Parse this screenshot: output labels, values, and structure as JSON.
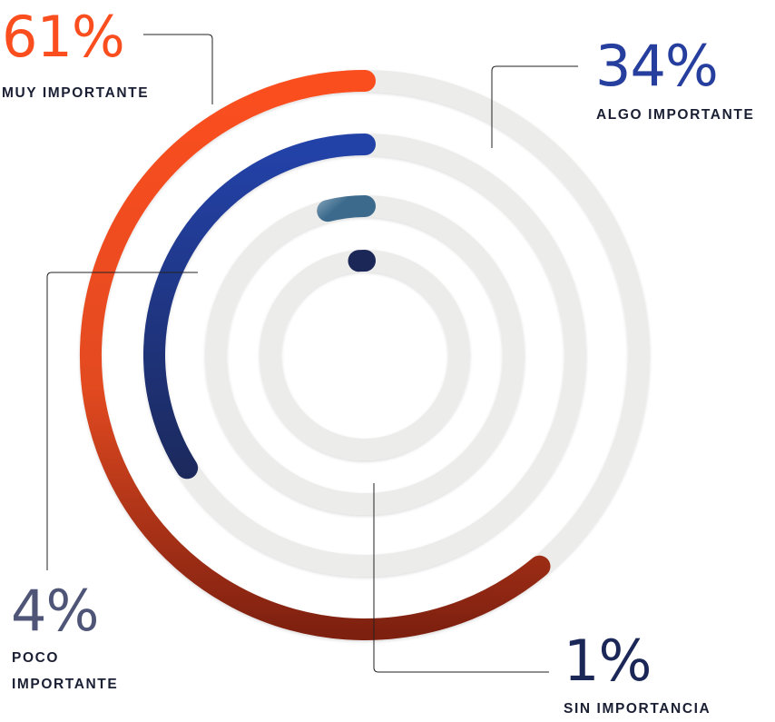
{
  "chart_data": {
    "type": "radial-bar",
    "max": 100,
    "series": [
      {
        "value": 61,
        "value_label": "61%",
        "name": "MUY IMPORTANTE",
        "color": "#fb4e1f",
        "color_end": "#7e2010"
      },
      {
        "value": 34,
        "value_label": "34%",
        "name": "ALGO IMPORTANTE",
        "color": "#2342a8",
        "color_end": "#1b2756"
      },
      {
        "value": 4,
        "value_label": "4%",
        "name": "POCO IMPORTANTE",
        "color": "#9fb4c5",
        "color_end": "#3b6a8c"
      },
      {
        "value": 1,
        "value_label": "1%",
        "name": "SIN IMPORTANCIA",
        "color": "#1b2756",
        "color_end": "#1b2756"
      }
    ],
    "track_color": "#ececea",
    "label_colors": [
      "#fb4e1f",
      "#263e9e",
      "#4e5577",
      "#1b2756"
    ]
  }
}
